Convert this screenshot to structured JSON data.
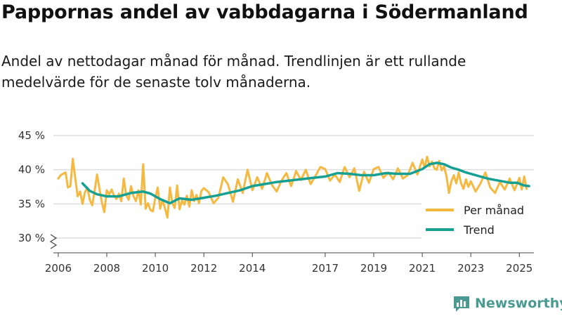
{
  "title": "Pappornas andel av vabbdagarna i Södermanland",
  "subtitle": "Andel av nettodagar månad för månad. Trendlinjen är ett rullande medelvärde för de senaste tolv månaderna.",
  "brand": "Newsworthy",
  "colors": {
    "per_month": "#f5b942",
    "trend": "#16a093",
    "grid": "#dddddd",
    "axis": "#444444",
    "brand": "#4a9a93"
  },
  "chart_data": {
    "type": "line",
    "title": "Pappornas andel av vabbdagarna i Södermanland",
    "xlabel": "",
    "ylabel": "",
    "xlim": [
      2005.8,
      2025.6
    ],
    "ylim": [
      28,
      46
    ],
    "y_ticks": [
      30,
      35,
      40,
      45
    ],
    "y_tick_labels": [
      "30 %",
      "35 %",
      "40 %",
      "45 %"
    ],
    "x_ticks": [
      2006,
      2008,
      2010,
      2012,
      2014,
      2017,
      2019,
      2021,
      2023,
      2025
    ],
    "x_tick_labels": [
      "2006",
      "2008",
      "2010",
      "2012",
      "2014",
      "2017",
      "2019",
      "2021",
      "2023",
      "2025"
    ],
    "axis_break": true,
    "grid": true,
    "legend_position": "bottom-right",
    "series": [
      {
        "name": "Per månad",
        "x": [
          2006.0,
          2006.1,
          2006.2,
          2006.3,
          2006.4,
          2006.5,
          2006.6,
          2006.7,
          2006.8,
          2006.9,
          2007.0,
          2007.1,
          2007.2,
          2007.3,
          2007.4,
          2007.5,
          2007.6,
          2007.7,
          2007.8,
          2007.9,
          2008.0,
          2008.1,
          2008.2,
          2008.3,
          2008.4,
          2008.5,
          2008.6,
          2008.7,
          2008.8,
          2008.9,
          2009.0,
          2009.1,
          2009.2,
          2009.3,
          2009.4,
          2009.5,
          2009.6,
          2009.7,
          2009.8,
          2009.9,
          2010.0,
          2010.1,
          2010.2,
          2010.3,
          2010.4,
          2010.5,
          2010.6,
          2010.7,
          2010.8,
          2010.9,
          2011.0,
          2011.1,
          2011.2,
          2011.3,
          2011.4,
          2011.5,
          2011.6,
          2011.7,
          2011.8,
          2011.9,
          2012.0,
          2012.2,
          2012.4,
          2012.6,
          2012.8,
          2013.0,
          2013.2,
          2013.4,
          2013.6,
          2013.8,
          2014.0,
          2014.2,
          2014.4,
          2014.6,
          2014.8,
          2015.0,
          2015.2,
          2015.4,
          2015.6,
          2015.8,
          2016.0,
          2016.2,
          2016.4,
          2016.6,
          2016.8,
          2017.0,
          2017.2,
          2017.4,
          2017.6,
          2017.8,
          2018.0,
          2018.2,
          2018.4,
          2018.6,
          2018.8,
          2019.0,
          2019.2,
          2019.4,
          2019.6,
          2019.8,
          2020.0,
          2020.2,
          2020.4,
          2020.6,
          2020.8,
          2021.0,
          2021.1,
          2021.2,
          2021.3,
          2021.4,
          2021.5,
          2021.6,
          2021.7,
          2021.8,
          2021.9,
          2022.0,
          2022.1,
          2022.2,
          2022.3,
          2022.4,
          2022.5,
          2022.6,
          2022.7,
          2022.8,
          2022.9,
          2023.0,
          2023.2,
          2023.4,
          2023.6,
          2023.8,
          2024.0,
          2024.2,
          2024.4,
          2024.6,
          2024.8,
          2025.0,
          2025.1,
          2025.2,
          2025.3
        ],
        "values": [
          38.7,
          39.2,
          39.4,
          39.6,
          37.4,
          37.6,
          41.6,
          38.8,
          36.1,
          36.8,
          35.0,
          36.7,
          37.4,
          35.6,
          34.8,
          36.9,
          39.3,
          37.2,
          35.2,
          33.8,
          37.0,
          36.4,
          37.1,
          36.2,
          35.7,
          36.5,
          35.4,
          38.7,
          36.3,
          35.6,
          37.6,
          36.1,
          35.4,
          37.0,
          34.9,
          40.8,
          34.3,
          35.1,
          34.1,
          33.9,
          35.9,
          37.4,
          34.3,
          35.6,
          34.3,
          33.0,
          37.4,
          35.1,
          34.4,
          37.7,
          34.2,
          35.5,
          34.9,
          36.2,
          34.6,
          37.0,
          35.4,
          36.3,
          35.1,
          36.9,
          37.3,
          36.7,
          35.1,
          35.9,
          38.9,
          37.8,
          35.3,
          38.6,
          36.6,
          40.0,
          37.0,
          38.9,
          37.2,
          39.5,
          37.8,
          36.8,
          38.4,
          39.5,
          37.6,
          39.8,
          38.5,
          40.0,
          37.9,
          39.1,
          40.4,
          40.1,
          38.4,
          39.3,
          38.2,
          40.4,
          38.9,
          40.2,
          36.9,
          39.7,
          38.1,
          40.1,
          40.4,
          38.8,
          39.6,
          38.6,
          40.2,
          38.7,
          39.2,
          41.0,
          39.3,
          41.5,
          40.3,
          41.9,
          40.5,
          41.2,
          40.2,
          40.0,
          41.3,
          39.9,
          40.5,
          39.0,
          36.6,
          38.3,
          39.2,
          38.0,
          39.6,
          38.0,
          37.2,
          38.6,
          37.5,
          38.3,
          36.8,
          38.0,
          39.6,
          37.4,
          36.6,
          38.2,
          37.1,
          38.7,
          37.0,
          38.8,
          37.1,
          39.0,
          37.2
        ],
        "color": "#f5b942"
      },
      {
        "name": "Trend",
        "x": [
          2007.0,
          2007.3,
          2007.6,
          2008.0,
          2008.5,
          2009.0,
          2009.5,
          2009.8,
          2010.2,
          2010.6,
          2011.0,
          2011.5,
          2012.0,
          2012.5,
          2013.0,
          2013.5,
          2014.0,
          2014.5,
          2015.0,
          2015.5,
          2016.0,
          2016.5,
          2017.0,
          2017.5,
          2018.0,
          2018.5,
          2019.0,
          2019.5,
          2020.0,
          2020.5,
          2021.0,
          2021.3,
          2021.6,
          2021.9,
          2022.2,
          2022.5,
          2022.8,
          2023.1,
          2023.4,
          2023.7,
          2024.0,
          2024.3,
          2024.6,
          2024.9,
          2025.2,
          2025.4
        ],
        "values": [
          38.0,
          36.9,
          36.4,
          36.1,
          36.1,
          36.6,
          36.8,
          36.5,
          35.7,
          35.1,
          35.8,
          35.6,
          35.9,
          36.2,
          36.6,
          37.0,
          37.6,
          37.9,
          38.2,
          38.4,
          38.6,
          38.8,
          39.0,
          39.5,
          39.4,
          39.2,
          39.2,
          39.5,
          39.4,
          39.4,
          40.1,
          40.8,
          41.0,
          40.8,
          40.3,
          40.0,
          39.6,
          39.3,
          39.0,
          38.7,
          38.5,
          38.3,
          38.1,
          38.1,
          37.7,
          37.6
        ],
        "color": "#16a093"
      }
    ]
  }
}
